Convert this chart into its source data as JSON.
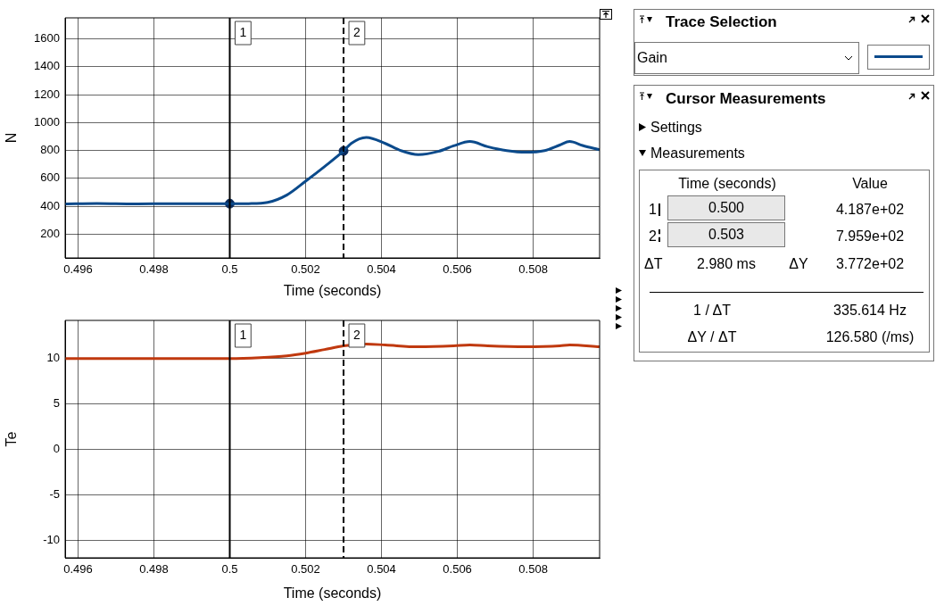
{
  "chart_data": [
    {
      "type": "line",
      "xlabel": "Time (seconds)",
      "ylabel": "N",
      "xlim": [
        0.49566,
        0.50975
      ],
      "ylim": [
        30,
        1750
      ],
      "xticks": [
        0.496,
        0.498,
        0.5,
        0.502,
        0.504,
        0.506,
        0.508
      ],
      "yticks": [
        200,
        400,
        600,
        800,
        1000,
        1200,
        1400,
        1600
      ],
      "grid": true,
      "legend": false,
      "series": [
        {
          "color": "#0b4a8b",
          "x": [
            0.49566,
            0.4965,
            0.4975,
            0.4985,
            0.4995,
            0.5,
            0.5005,
            0.501,
            0.5015,
            0.502,
            0.5025,
            0.503,
            0.5032,
            0.5036,
            0.5041,
            0.5045,
            0.50497,
            0.5055,
            0.5059,
            0.50633,
            0.5068,
            0.5073,
            0.5078,
            0.5083,
            0.5087,
            0.50896,
            0.5093,
            0.50975
          ],
          "values": [
            417,
            420,
            417,
            419,
            418,
            418,
            419,
            428,
            480,
            580,
            685,
            796,
            850,
            893,
            850,
            800,
            770,
            793,
            833,
            864,
            827,
            799,
            787,
            799,
            839,
            864,
            836,
            805
          ]
        },
        {
          "type": "scatter",
          "marker": "circle",
          "color": "#0a2a5a",
          "x": [
            0.5,
            0.503
          ],
          "values": [
            419,
            796
          ]
        }
      ],
      "ref_lines": [
        {
          "axis": "x",
          "value": 0.5,
          "color": "#000000",
          "line_style": "solid"
        },
        {
          "axis": "x",
          "value": 0.503,
          "color": "#000000",
          "line_style": "dashed"
        }
      ],
      "annotations": [
        "1",
        "2"
      ]
    },
    {
      "type": "line",
      "xlabel": "Time (seconds)",
      "ylabel": "Te",
      "xlim": [
        0.49566,
        0.50975
      ],
      "ylim": [
        -11.9,
        14.2
      ],
      "xticks": [
        0.496,
        0.498,
        0.5,
        0.502,
        0.504,
        0.506,
        0.508
      ],
      "yticks": [
        -10,
        -5,
        0,
        5,
        10
      ],
      "grid": true,
      "legend": false,
      "series": [
        {
          "color": "#c0390f",
          "x": [
            0.49566,
            0.4975,
            0.4995,
            0.5,
            0.5008,
            0.5015,
            0.502,
            0.5025,
            0.503,
            0.5036,
            0.5041,
            0.50497,
            0.5059,
            0.50633,
            0.5068,
            0.5078,
            0.5087,
            0.50896,
            0.50975
          ],
          "values": [
            10,
            10,
            10,
            10,
            10.1,
            10.3,
            10.6,
            11,
            11.4,
            11.6,
            11.5,
            11.3,
            11.4,
            11.5,
            11.4,
            11.3,
            11.4,
            11.5,
            11.3
          ]
        }
      ],
      "ref_lines": [
        {
          "axis": "x",
          "value": 0.5,
          "color": "#000000",
          "line_style": "solid"
        },
        {
          "axis": "x",
          "value": 0.503,
          "color": "#000000",
          "line_style": "dashed"
        }
      ],
      "annotations": [
        "1",
        "2"
      ]
    },
    {
      "type": "other",
      "title": "Cursor Measurements",
      "annotations": [
        "Trace Selection",
        "Gain",
        "Settings",
        "Measurements",
        "Time (seconds)",
        "Value",
        "1",
        "0.500",
        "4.187e+02",
        "2",
        "0.503",
        "7.959e+02",
        "ΔT",
        "2.980 ms",
        "ΔY",
        "3.772e+02",
        "1 / ΔT",
        "335.614 Hz",
        "ΔY / ΔT",
        "126.580 (/ms)"
      ]
    }
  ]
}
